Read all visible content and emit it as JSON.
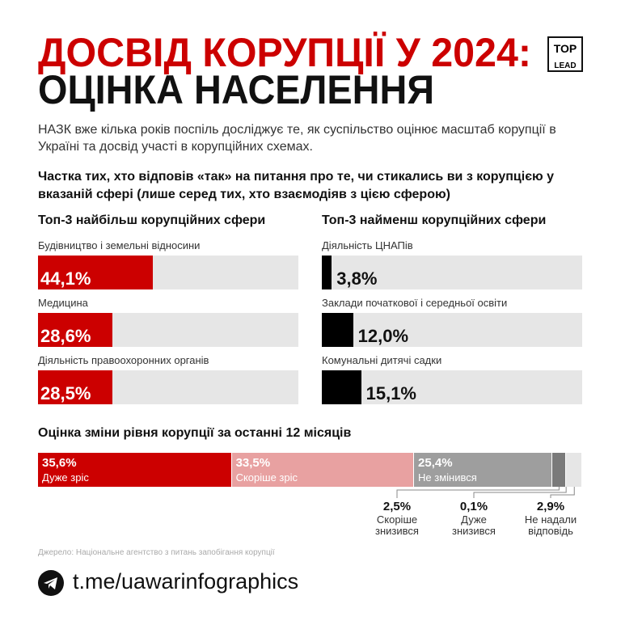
{
  "header": {
    "title_line1": "ДОСВІД КОРУПЦІЇ У 2024:",
    "title_line2": "ОЦІНКА НАСЕЛЕННЯ",
    "logo_top": "TOP",
    "logo_bottom": "LEAD"
  },
  "intro": "НАЗК вже кілька років поспіль досліджує те, як суспільство оцінює масштаб корупції в Україні та досвід участі в корупційних схемах.",
  "question": "Частка тих, хто відповів «так» на питання про те, чи стикались ви з корупцією у вказаній сфері (лише серед тих, хто взаємодіяв з цією сферою)",
  "chart_data": [
    {
      "type": "bar",
      "title": "Топ-3 найбільш корупційних сфери",
      "categories": [
        "Будівництво і земельні відносини",
        "Медицина",
        "Діяльність правоохоронних органів"
      ],
      "values": [
        44.1,
        28.6,
        28.5
      ],
      "value_labels": [
        "44,1%",
        "28,6%",
        "28,5%"
      ],
      "color": "#cc0000",
      "track_color": "#e6e6e6",
      "xlim": [
        0,
        100
      ]
    },
    {
      "type": "bar",
      "title": "Топ-3 найменш корупційних сфери",
      "categories": [
        "Діяльність ЦНАПів",
        "Заклади початкової і середньої освіти",
        "Комунальні дитячі садки"
      ],
      "values": [
        3.8,
        12.0,
        15.1
      ],
      "value_labels": [
        "3,8%",
        "12,0%",
        "15,1%"
      ],
      "color": "#000000",
      "track_color": "#e6e6e6",
      "xlim": [
        0,
        100
      ]
    },
    {
      "type": "stacked_bar",
      "title": "Оцінка зміни рівня корупції за останні 12 місяців",
      "xlim": [
        0,
        100
      ],
      "series": [
        {
          "name": "Дуже зріс",
          "color": "#cc0000",
          "values": [
            35.6
          ],
          "value_labels": [
            "35,6%"
          ]
        },
        {
          "name": "Скоріше зріс",
          "color": "#e8a1a1",
          "values": [
            33.5
          ],
          "value_labels": [
            "33,5%"
          ]
        },
        {
          "name": "Не змінився",
          "color": "#9e9e9e",
          "values": [
            25.4
          ],
          "value_labels": [
            "25,4%"
          ]
        },
        {
          "name": "Скоріше знизився",
          "color": "#7a7a7a",
          "values": [
            2.5
          ],
          "value_labels": [
            "2,5%"
          ]
        },
        {
          "name": "Дуже знизився",
          "color": "#444444",
          "values": [
            0.1
          ],
          "value_labels": [
            "0,1%"
          ]
        },
        {
          "name": "Не надали відповідь",
          "color": "#e6e6e6",
          "values": [
            2.9
          ],
          "value_labels": [
            "2,9%"
          ]
        }
      ]
    }
  ],
  "source": "Джерело: Національне агентство з питань запобігання корупції",
  "footer_link": "t.me/uawarinfographics"
}
